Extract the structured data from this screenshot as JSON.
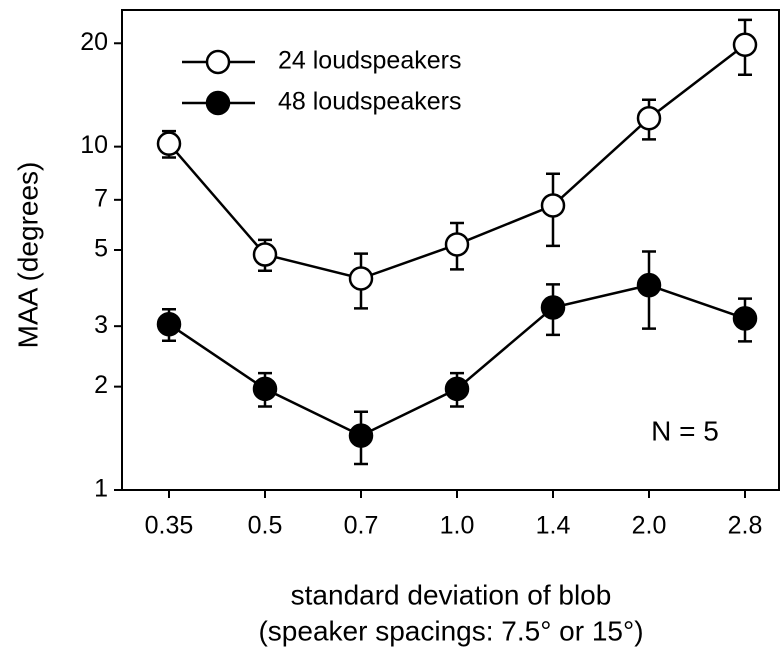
{
  "chart_data": {
    "type": "line",
    "y_label": "MAA (degrees)",
    "x_label": [
      "standard deviation of blob",
      "(speaker spacings: 7.5° or 15°)"
    ],
    "annotation": "N = 5",
    "categories": [
      "0.35",
      "0.5",
      "0.7",
      "1.0",
      "1.4",
      "2.0",
      "2.8"
    ],
    "series": [
      {
        "name": "24 loudspeakers",
        "color": "#ffffff",
        "values": [
          10.2,
          4.85,
          4.13,
          5.19,
          6.74,
          12.1,
          19.8
        ],
        "errors": [
          0.9,
          0.5,
          0.75,
          0.8,
          1.6,
          1.6,
          3.6
        ]
      },
      {
        "name": "48 loudspeakers",
        "color": "#000000",
        "values": [
          3.04,
          1.97,
          1.44,
          1.97,
          3.4,
          3.95,
          3.16
        ],
        "errors": [
          0.32,
          0.22,
          0.25,
          0.22,
          0.57,
          1.0,
          0.45
        ]
      }
    ],
    "log_y": true,
    "ylim": [
      1,
      25
    ],
    "yticks": [
      1,
      2,
      3,
      5,
      7,
      10,
      20
    ],
    "legend": "upper-left"
  }
}
